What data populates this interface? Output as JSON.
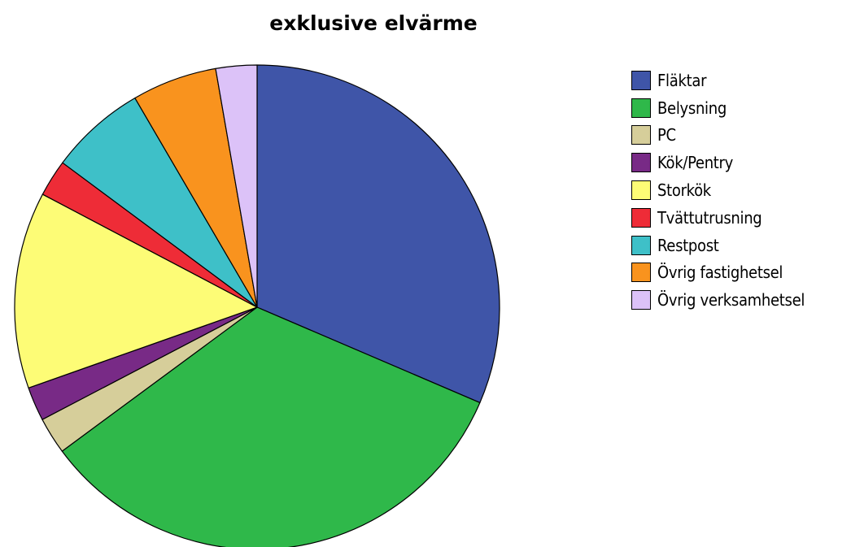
{
  "chart_data": {
    "type": "pie",
    "title": "exklusive elvärme",
    "start_angle_deg": 0,
    "direction": "clockwise",
    "legend_position": "right",
    "slices": [
      {
        "label": "Fläktar",
        "value": 33.3,
        "color": "#3f55a8"
      },
      {
        "label": "Belysning",
        "value": 35.4,
        "color": "#2fb84a"
      },
      {
        "label": "PC",
        "value": 2.6,
        "color": "#d6ce9a"
      },
      {
        "label": "Kök/Pentry",
        "value": 2.4,
        "color": "#782a86"
      },
      {
        "label": "Storkök",
        "value": 13.9,
        "color": "#fdfc76"
      },
      {
        "label": "Tvättutrusning",
        "value": 2.6,
        "color": "#ee2c37"
      },
      {
        "label": "Restpost",
        "value": 6.8,
        "color": "#3ec0c8"
      },
      {
        "label": "Övrig fastighetsel",
        "value": 6.0,
        "color": "#f9931e"
      },
      {
        "label": "Övrig verksamhetsel",
        "value": 2.9,
        "color": "#dcc2f8"
      }
    ]
  }
}
